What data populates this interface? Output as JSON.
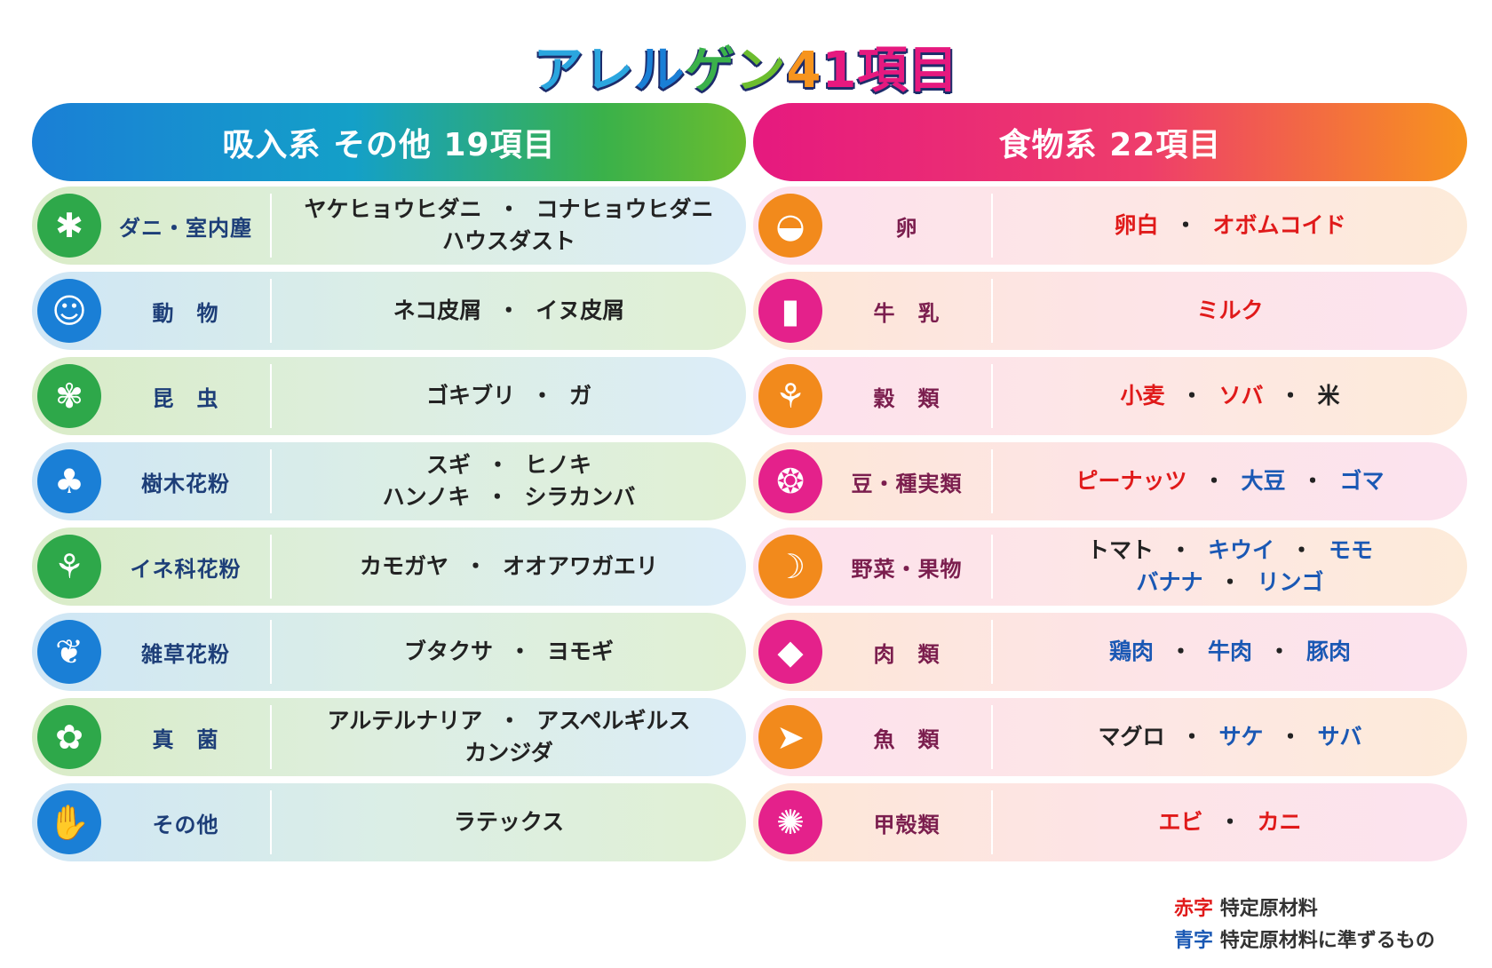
{
  "title": "アレルゲン41項目",
  "title_colors": [
    "#2ba6df",
    "#2ba6df",
    "#1a7fd6",
    "#3ab14a",
    "#6cbd2e",
    "#f7941d",
    "#e6197f",
    "#e6197f",
    "#e6197f",
    "#e6197f",
    "#e6197f"
  ],
  "left": {
    "header": "吸入系 その他 19項目",
    "rows": [
      {
        "category": "ダニ・室内塵",
        "icon": "mite-icon",
        "lines": [
          [
            "ヤケヒョウヒダニ",
            "コナヒョウヒダニ"
          ],
          [
            "ハウスダスト"
          ]
        ]
      },
      {
        "category": "動　物",
        "icon": "cat-icon",
        "lines": [
          [
            "ネコ皮屑",
            "イヌ皮屑"
          ]
        ]
      },
      {
        "category": "昆　虫",
        "icon": "moth-icon",
        "lines": [
          [
            "ゴキブリ",
            "ガ"
          ]
        ]
      },
      {
        "category": "樹木花粉",
        "icon": "tree-icon",
        "lines": [
          [
            "スギ",
            "ヒノキ"
          ],
          [
            "ハンノキ",
            "シラカンバ"
          ]
        ]
      },
      {
        "category": "イネ科花粉",
        "icon": "grass-icon",
        "lines": [
          [
            "カモガヤ",
            "オオアワガエリ"
          ]
        ]
      },
      {
        "category": "雑草花粉",
        "icon": "weed-icon",
        "lines": [
          [
            "ブタクサ",
            "ヨモギ"
          ]
        ]
      },
      {
        "category": "真　菌",
        "icon": "fungus-icon",
        "lines": [
          [
            "アルテルナリア",
            "アスペルギルス"
          ],
          [
            "カンジダ"
          ]
        ]
      },
      {
        "category": "その他",
        "icon": "glove-icon",
        "lines": [
          [
            "ラテックス"
          ]
        ]
      }
    ]
  },
  "right": {
    "header": "食物系 22項目",
    "rows": [
      {
        "category": "卵",
        "icon": "egg-icon",
        "lines": [
          [
            {
              "t": "卵白",
              "c": "red"
            },
            {
              "t": "オボムコイド",
              "c": "red"
            }
          ]
        ]
      },
      {
        "category": "牛　乳",
        "icon": "milk-icon",
        "lines": [
          [
            {
              "t": "ミルク",
              "c": "red"
            }
          ]
        ]
      },
      {
        "category": "穀　類",
        "icon": "wheat-icon",
        "lines": [
          [
            {
              "t": "小麦",
              "c": "red"
            },
            {
              "t": "ソバ",
              "c": "red"
            },
            {
              "t": "米",
              "c": "black"
            }
          ]
        ]
      },
      {
        "category": "豆・種実類",
        "icon": "bean-icon",
        "lines": [
          [
            {
              "t": "ピーナッツ",
              "c": "red"
            },
            {
              "t": "大豆",
              "c": "blue"
            },
            {
              "t": "ゴマ",
              "c": "blue"
            }
          ]
        ]
      },
      {
        "category": "野菜・果物",
        "icon": "banana-icon",
        "lines": [
          [
            {
              "t": "トマト",
              "c": "black"
            },
            {
              "t": "キウイ",
              "c": "blue"
            },
            {
              "t": "モモ",
              "c": "blue"
            }
          ],
          [
            {
              "t": "バナナ",
              "c": "blue"
            },
            {
              "t": "リンゴ",
              "c": "blue"
            }
          ]
        ]
      },
      {
        "category": "肉　類",
        "icon": "meat-icon",
        "lines": [
          [
            {
              "t": "鶏肉",
              "c": "blue"
            },
            {
              "t": "牛肉",
              "c": "blue"
            },
            {
              "t": "豚肉",
              "c": "blue"
            }
          ]
        ]
      },
      {
        "category": "魚　類",
        "icon": "fish-icon",
        "lines": [
          [
            {
              "t": "マグロ",
              "c": "black"
            },
            {
              "t": "サケ",
              "c": "blue"
            },
            {
              "t": "サバ",
              "c": "blue"
            }
          ]
        ]
      },
      {
        "category": "甲殻類",
        "icon": "crab-icon",
        "lines": [
          [
            {
              "t": "エビ",
              "c": "red"
            },
            {
              "t": "カニ",
              "c": "red"
            }
          ]
        ]
      }
    ]
  },
  "legend": {
    "red_key": "赤字",
    "red_text": "特定原材料",
    "blue_key": "青字",
    "blue_text": "特定原材料に準ずるもの"
  }
}
